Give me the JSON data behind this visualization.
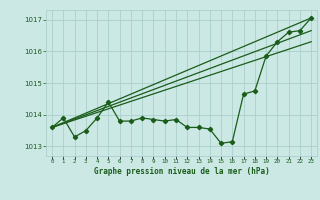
{
  "x": [
    0,
    1,
    2,
    3,
    4,
    5,
    6,
    7,
    8,
    9,
    10,
    11,
    12,
    13,
    14,
    15,
    16,
    17,
    18,
    19,
    20,
    21,
    22,
    23
  ],
  "pressure": [
    1013.6,
    1013.9,
    1013.3,
    1013.5,
    1013.9,
    1014.4,
    1013.8,
    1013.8,
    1013.9,
    1013.85,
    1013.8,
    1013.85,
    1013.6,
    1013.6,
    1013.55,
    1013.1,
    1013.15,
    1014.65,
    1014.75,
    1015.85,
    1016.3,
    1016.6,
    1016.65,
    1017.05
  ],
  "line1_x": [
    0,
    23
  ],
  "line1_y": [
    1013.6,
    1017.05
  ],
  "line2_x": [
    0,
    23
  ],
  "line2_y": [
    1013.6,
    1016.65
  ],
  "line3_x": [
    0,
    23
  ],
  "line3_y": [
    1013.6,
    1016.3
  ],
  "bg_color": "#cce8e4",
  "line_color": "#1a5c1a",
  "grid_color": "#aacfcc",
  "xlabel": "Graphe pression niveau de la mer (hPa)",
  "ylim": [
    1012.7,
    1017.3
  ],
  "xlim": [
    -0.5,
    23.5
  ],
  "yticks": [
    1013,
    1014,
    1015,
    1016,
    1017
  ],
  "xtick_labels": [
    "0",
    "1",
    "2",
    "3",
    "4",
    "5",
    "6",
    "7",
    "8",
    "9",
    "10",
    "11",
    "12",
    "13",
    "14",
    "15",
    "16",
    "17",
    "18",
    "19",
    "20",
    "21",
    "22",
    "23"
  ]
}
